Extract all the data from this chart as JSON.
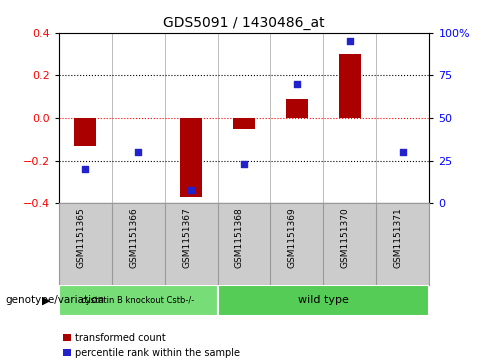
{
  "title": "GDS5091 / 1430486_at",
  "categories": [
    "GSM1151365",
    "GSM1151366",
    "GSM1151367",
    "GSM1151368",
    "GSM1151369",
    "GSM1151370",
    "GSM1151371"
  ],
  "red_bars": [
    -0.13,
    0.0,
    -0.37,
    -0.05,
    0.09,
    0.3,
    0.0
  ],
  "blue_dots_pct": [
    20,
    30,
    8,
    23,
    70,
    95,
    30
  ],
  "ylim": [
    -0.4,
    0.4
  ],
  "yticks_left": [
    -0.4,
    -0.2,
    0.0,
    0.2,
    0.4
  ],
  "yticks_right_pct": [
    0,
    25,
    50,
    75,
    100
  ],
  "hlines_dotted": [
    0.2,
    -0.2
  ],
  "group1_label": "cystatin B knockout Cstb-/-",
  "group1_indices": [
    0,
    1,
    2
  ],
  "group2_label": "wild type",
  "group2_indices": [
    3,
    4,
    5,
    6
  ],
  "group1_color": "#77DD77",
  "group2_color": "#55CC55",
  "bar_color": "#AA0000",
  "dot_color": "#2222CC",
  "legend_bar_label": "transformed count",
  "legend_dot_label": "percentile rank within the sample",
  "genotype_label": "genotype/variation",
  "tick_area_bg": "#CCCCCC",
  "tick_area_border": "#999999"
}
